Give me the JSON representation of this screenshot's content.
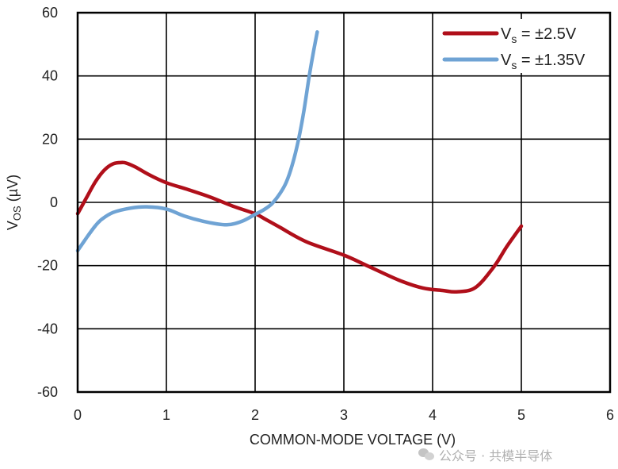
{
  "chart_data": {
    "type": "line",
    "title": "",
    "xlabel": "COMMON-MODE VOLTAGE (V)",
    "ylabel_main": "V",
    "ylabel_sub": "OS",
    "ylabel_unit": " (µV)",
    "xlim": [
      0,
      6
    ],
    "ylim": [
      -60,
      60
    ],
    "x_ticks": [
      0,
      1,
      2,
      3,
      4,
      5,
      6
    ],
    "y_ticks": [
      60,
      40,
      20,
      0,
      -20,
      -40,
      -60
    ],
    "grid": true,
    "legend_position": "top-right",
    "series": [
      {
        "name": "Vs = ±2.5V",
        "label_main": "V",
        "label_sub": "s",
        "label_rest": " = ±2.5V",
        "color": "#B00F1A",
        "x": [
          0.0,
          0.1,
          0.2,
          0.3,
          0.4,
          0.5,
          0.55,
          0.65,
          0.8,
          1.0,
          1.25,
          1.5,
          1.75,
          2.0,
          2.12,
          2.28,
          2.58,
          3.0,
          3.26,
          3.62,
          3.89,
          4.12,
          4.27,
          4.48,
          4.69,
          4.84,
          5.0
        ],
        "y": [
          -3.6,
          1.5,
          6.5,
          10.2,
          12.2,
          12.6,
          12.4,
          11.2,
          8.8,
          6.2,
          4.0,
          1.6,
          -1.2,
          -3.6,
          -5.4,
          -7.9,
          -12.5,
          -16.7,
          -20.0,
          -24.6,
          -27.1,
          -27.9,
          -28.3,
          -27.0,
          -20.4,
          -13.8,
          -7.5
        ]
      },
      {
        "name": "Vs = ±1.35V",
        "label_main": "V",
        "label_sub": "s",
        "label_rest": " = ±1.35V",
        "color": "#6FA3D4",
        "x": [
          0.0,
          0.1,
          0.2,
          0.27,
          0.4,
          0.6,
          0.78,
          1.0,
          1.2,
          1.45,
          1.68,
          1.85,
          2.0,
          2.1,
          2.19,
          2.28,
          2.35,
          2.42,
          2.49,
          2.55,
          2.61,
          2.66,
          2.7
        ],
        "y": [
          -15.3,
          -11.2,
          -7.4,
          -5.4,
          -3.2,
          -1.8,
          -1.4,
          -2.1,
          -4.3,
          -6.2,
          -7.1,
          -6.0,
          -3.8,
          -2.3,
          -0.4,
          2.8,
          6.3,
          12.0,
          20.0,
          29.0,
          40.0,
          48.0,
          53.9
        ]
      }
    ]
  },
  "watermark": {
    "text": "公众号 · 共模半导体"
  }
}
